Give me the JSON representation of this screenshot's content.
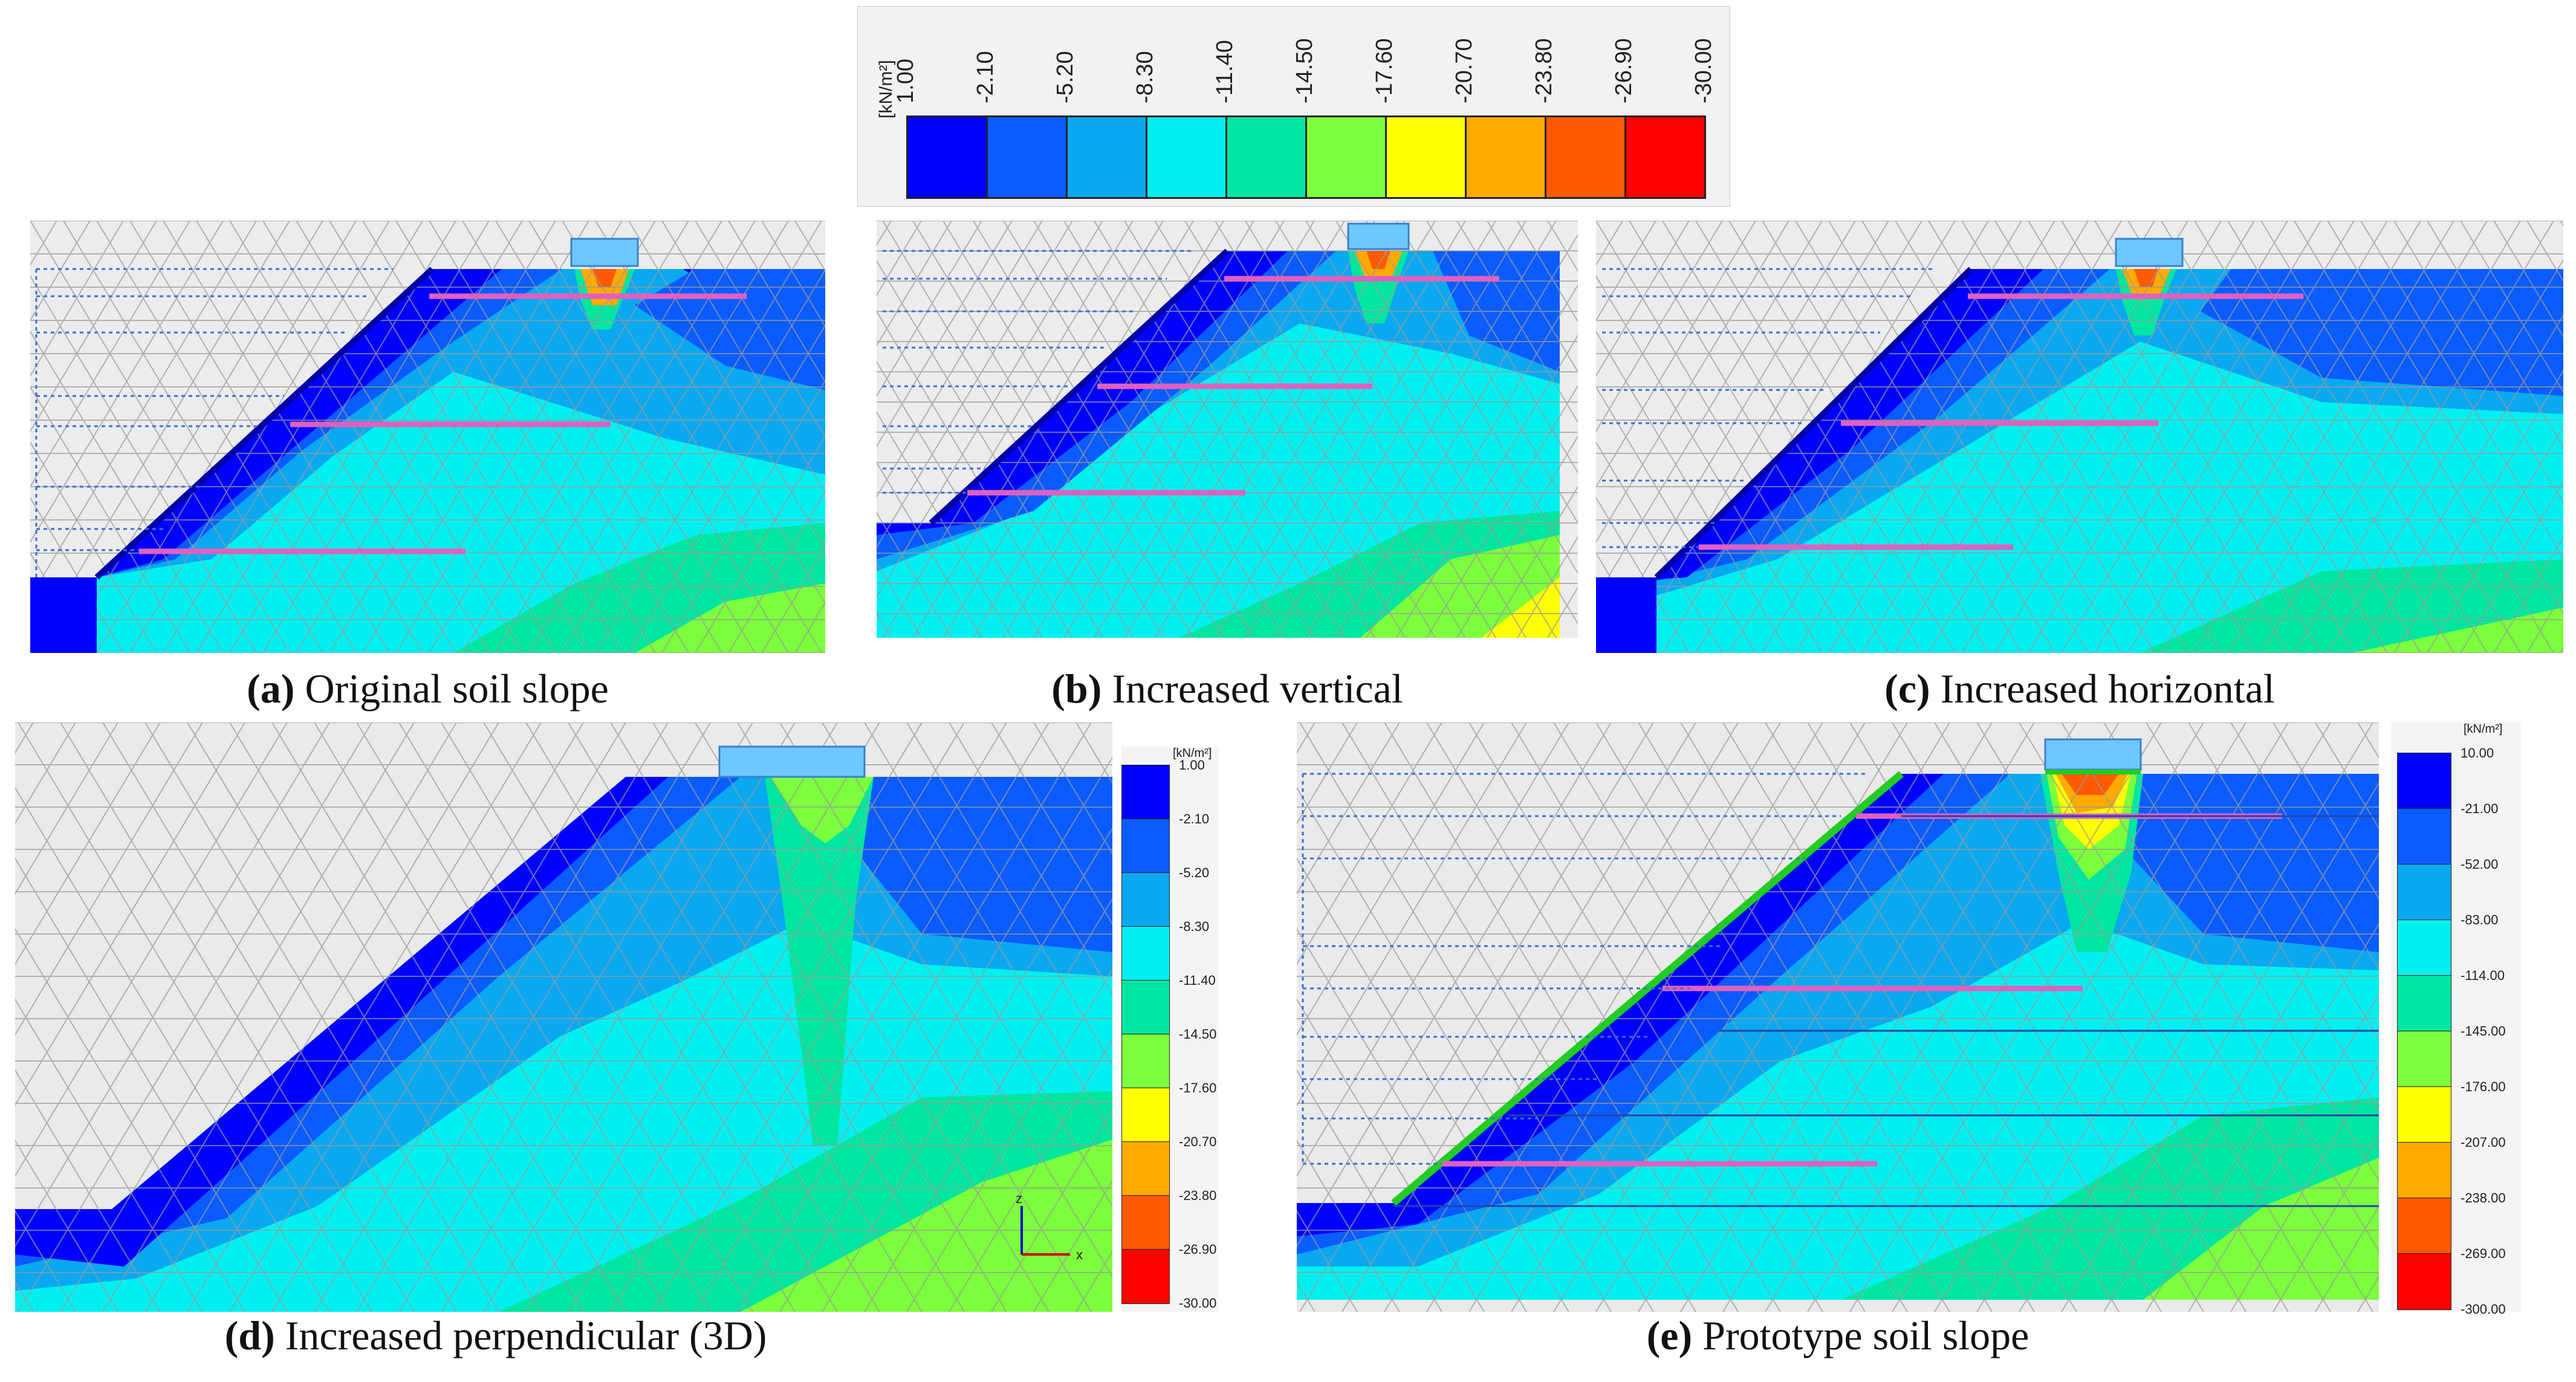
{
  "legend_top": {
    "unit": "[kN/m²]",
    "ticks": [
      "1.00",
      "-2.10",
      "-5.20",
      "-8.30",
      "-11.40",
      "-14.50",
      "-17.60",
      "-20.70",
      "-23.80",
      "-26.90",
      "-30.00"
    ],
    "colors": [
      "#0000ff",
      "#0a5cff",
      "#0aa8f0",
      "#00f0f0",
      "#00e6a0",
      "#7cff3c",
      "#ffff00",
      "#ffaa00",
      "#ff5a00",
      "#ff0000"
    ]
  },
  "panels": [
    {
      "id": "a",
      "letter": "a",
      "caption": " Original soil slope"
    },
    {
      "id": "b",
      "letter": "b",
      "caption": " Increased vertical"
    },
    {
      "id": "c",
      "letter": "c",
      "caption": " Increased horizontal"
    },
    {
      "id": "d",
      "letter": "d",
      "caption": " Increased perpendicular (3D)"
    },
    {
      "id": "e",
      "letter": "e",
      "caption": " Prototype soil slope"
    }
  ],
  "legend_d": {
    "unit": "[kN/m²]",
    "ticks": [
      "1.00",
      "-2.10",
      "-5.20",
      "-8.30",
      "-11.40",
      "-14.50",
      "-17.60",
      "-20.70",
      "-23.80",
      "-26.90",
      "-30.00"
    ]
  },
  "legend_e": {
    "unit": "[kN/m²]",
    "ticks": [
      "10.00",
      "-21.00",
      "-52.00",
      "-83.00",
      "-114.00",
      "-145.00",
      "-176.00",
      "-207.00",
      "-238.00",
      "-269.00",
      "-300.00"
    ]
  },
  "axis_triad": {
    "z": "z",
    "x": "x"
  },
  "colors": {
    "c1": "#0000ff",
    "c2": "#0a5cff",
    "c3": "#0aa8f0",
    "c4": "#00f0f0",
    "c5": "#00e6a0",
    "c6": "#7cff3c",
    "c7": "#ffff00",
    "c8": "#ffaa00",
    "c9": "#ff5a00",
    "c10": "#ff0000",
    "nail": "#e060c0",
    "facing": "#22cc22"
  }
}
